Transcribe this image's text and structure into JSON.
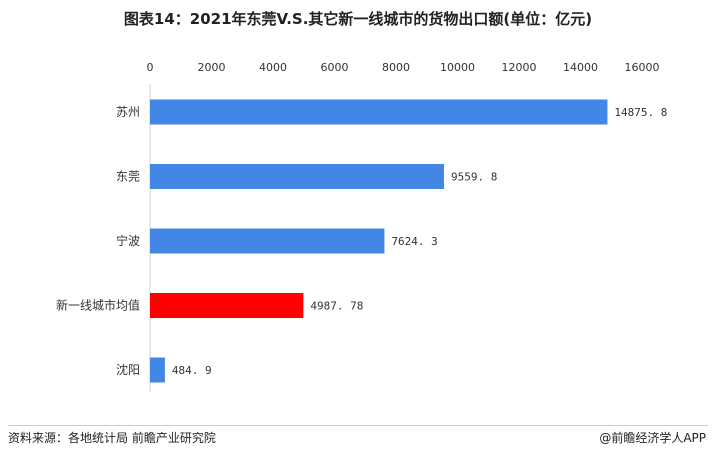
{
  "chart_data": {
    "type": "bar",
    "orientation": "horizontal",
    "title": "图表14：2021年东莞V.S.其它新一线城市的货物出口额(单位：亿元)",
    "categories": [
      "苏州",
      "东莞",
      "宁波",
      "新一线城市均值",
      "沈阳"
    ],
    "values": [
      14875.8,
      9559.8,
      7624.3,
      4987.78,
      484.9
    ],
    "value_labels": [
      "14875. 8",
      "9559. 8",
      "7624. 3",
      "4987. 78",
      "484. 9"
    ],
    "x_ticks": [
      0,
      2000,
      4000,
      6000,
      8000,
      10000,
      12000,
      14000,
      16000
    ],
    "xlim": [
      0,
      16000
    ],
    "xaxis_position": "top",
    "grid": false,
    "colors": {
      "default_bar": "#4387e6",
      "highlight_bar": "#ff0000",
      "highlight_category": "新一线城市均值"
    }
  },
  "footer": {
    "source": "资料来源：各地统计局 前瞻产业研究院",
    "brand": "@前瞻经济学人APP"
  }
}
